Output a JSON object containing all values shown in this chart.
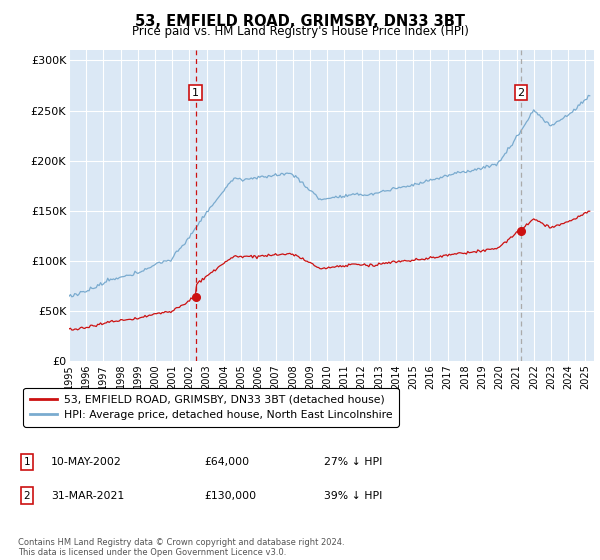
{
  "title": "53, EMFIELD ROAD, GRIMSBY, DN33 3BT",
  "subtitle": "Price paid vs. HM Land Registry's House Price Index (HPI)",
  "legend_label_red": "53, EMFIELD ROAD, GRIMSBY, DN33 3BT (detached house)",
  "legend_label_blue": "HPI: Average price, detached house, North East Lincolnshire",
  "sale1_date": "10-MAY-2002",
  "sale1_price": "£64,000",
  "sale1_note": "27% ↓ HPI",
  "sale1_year": 2002.36,
  "sale1_value": 64000,
  "sale2_date": "31-MAR-2021",
  "sale2_price": "£130,000",
  "sale2_note": "39% ↓ HPI",
  "sale2_year": 2021.25,
  "sale2_value": 130000,
  "hpi_color": "#7aabcf",
  "red_color": "#cc1111",
  "marker_box_color": "#cc1111",
  "sale2_vline_color": "#aaaaaa",
  "plot_bg_color": "#dbe8f5",
  "footer": "Contains HM Land Registry data © Crown copyright and database right 2024.\nThis data is licensed under the Open Government Licence v3.0.",
  "ylim": [
    0,
    310000
  ],
  "xlim": [
    1995.0,
    2025.5
  ],
  "yticks": [
    0,
    50000,
    100000,
    150000,
    200000,
    250000,
    300000
  ],
  "ytick_labels": [
    "£0",
    "£50K",
    "£100K",
    "£150K",
    "£200K",
    "£250K",
    "£300K"
  ]
}
